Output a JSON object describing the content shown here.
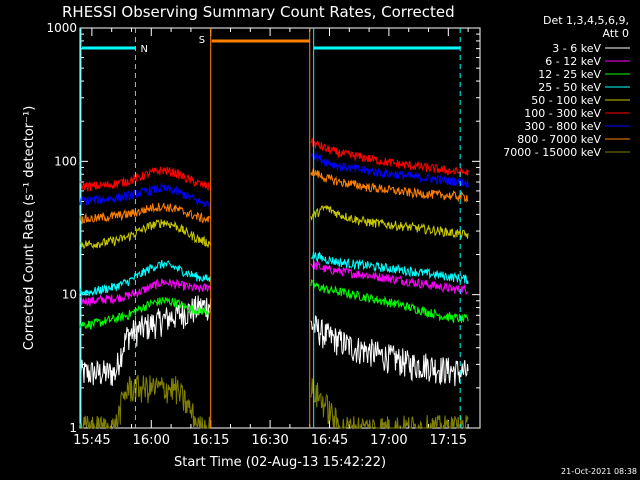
{
  "chart_data": {
    "type": "line",
    "title": "RHESSI Observing Summary Count Rates, Corrected",
    "xlabel": "Start Time (02-Aug-13 15:42:22)",
    "ylabel": "Corrected Count Rate (s⁻¹ detector⁻¹)",
    "y_scale": "log",
    "ylim": [
      1,
      1000
    ],
    "xlim_minutes": [
      -3,
      98
    ],
    "x_ticks": [
      "15:45",
      "16:00",
      "16:15",
      "16:30",
      "16:45",
      "17:00",
      "17:15"
    ],
    "y_ticks": [
      "1",
      "10",
      "100",
      "1000"
    ],
    "legend_title": "Det 1,3,4,5,6,9,",
    "legend_subtitle": "Att 0",
    "legend_position": "right",
    "footer_date": "21-Oct-2021 08:38",
    "gap_minutes": [
      30,
      55
    ],
    "annotations": [
      {
        "label": "N",
        "color": "#00ffff",
        "start": -3,
        "end": 11
      },
      {
        "label": "S",
        "color": "#ff8000",
        "start": 30,
        "end": 55
      }
    ],
    "series": [
      {
        "name": "3 - 6 keV",
        "color": "#ffffff",
        "pre": [
          2.6,
          2.6,
          2.6,
          2.6,
          5.0,
          5.5,
          6.0,
          6.5,
          7.0,
          7.5,
          8.0,
          8.5
        ],
        "post": [
          6.0,
          5.0,
          4.5,
          4.0,
          3.8,
          3.5,
          3.3,
          3.0,
          3.0,
          2.8,
          2.7,
          2.6
        ]
      },
      {
        "name": "6 - 12 keV",
        "color": "#ff00ff",
        "pre": [
          9.0,
          9.0,
          9.2,
          9.4,
          9.8,
          10.5,
          11.5,
          12.5,
          12.0,
          11.5,
          11.0,
          11.5
        ],
        "post": [
          17.0,
          15.5,
          15.0,
          14.5,
          14.0,
          13.5,
          13.0,
          12.5,
          12.0,
          11.5,
          11.0,
          11.0
        ]
      },
      {
        "name": "12 - 25 keV",
        "color": "#00ff00",
        "pre": [
          6.0,
          6.0,
          6.3,
          6.6,
          7.0,
          7.8,
          8.6,
          9.0,
          8.8,
          8.0,
          7.6,
          7.5
        ],
        "post": [
          12.0,
          11.0,
          10.5,
          10.0,
          9.5,
          9.0,
          8.5,
          8.0,
          7.5,
          7.0,
          6.7,
          6.5
        ]
      },
      {
        "name": "25 - 50 keV",
        "color": "#00ffff",
        "pre": [
          10.5,
          10.5,
          11.0,
          11.5,
          12.5,
          14.0,
          16.0,
          17.0,
          16.0,
          14.5,
          13.5,
          13.0
        ],
        "post": [
          20.0,
          18.5,
          17.5,
          17.0,
          16.5,
          16.0,
          15.5,
          15.0,
          14.5,
          14.0,
          13.5,
          13.0
        ]
      },
      {
        "name": "50 - 100 keV",
        "color": "#c8c800",
        "pre": [
          24.0,
          24.0,
          24.5,
          25.5,
          27.0,
          30.0,
          33.0,
          35.0,
          33.0,
          29.0,
          26.0,
          24.0
        ],
        "post": [
          38.0,
          45.0,
          40.0,
          37.0,
          35.0,
          34.0,
          33.0,
          32.0,
          31.0,
          30.0,
          29.0,
          28.0
        ]
      },
      {
        "name": "100 - 300 keV",
        "color": "#ff0000",
        "pre": [
          66.0,
          65.0,
          66.0,
          68.0,
          71.0,
          76.0,
          82.0,
          86.0,
          82.0,
          74.0,
          68.0,
          64.0
        ],
        "post": [
          140.0,
          125.0,
          115.0,
          110.0,
          105.0,
          100.0,
          96.0,
          93.0,
          90.0,
          87.0,
          84.0,
          82.0
        ]
      },
      {
        "name": "300 - 800 keV",
        "color": "#0000ff",
        "pre": [
          51.0,
          51.0,
          52.0,
          53.0,
          55.0,
          58.0,
          61.0,
          63.0,
          60.0,
          55.0,
          50.0,
          47.0
        ],
        "post": [
          115.0,
          100.0,
          92.0,
          88.0,
          85.0,
          82.0,
          80.0,
          77.0,
          75.0,
          73.0,
          71.0,
          69.0
        ]
      },
      {
        "name": "800 - 7000 keV",
        "color": "#ff8000",
        "pre": [
          37.0,
          37.0,
          38.0,
          39.0,
          40.0,
          42.0,
          45.0,
          46.0,
          44.0,
          41.0,
          38.0,
          36.0
        ],
        "post": [
          85.0,
          75.0,
          70.0,
          67.0,
          64.0,
          62.0,
          60.0,
          58.0,
          57.0,
          56.0,
          55.0,
          54.0
        ]
      },
      {
        "name": "7000 - 15000 keV",
        "color": "#808000",
        "pre": [
          1.0,
          1.0,
          1.0,
          1.0,
          2.0,
          2.0,
          2.0,
          2.0,
          2.0,
          1.5,
          1.0,
          1.0
        ],
        "post": [
          2.0,
          1.5,
          1.0,
          1.0,
          1.0,
          1.0,
          1.0,
          1.0,
          1.0,
          1.0,
          1.0,
          1.0
        ]
      }
    ]
  }
}
